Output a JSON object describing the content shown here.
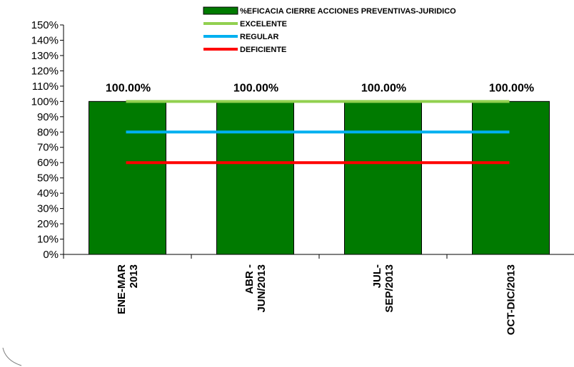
{
  "chart_data": {
    "type": "bar",
    "categories": [
      [
        "ENE-MAR",
        "2013"
      ],
      [
        "ABR -",
        "JUN/2013"
      ],
      [
        "JUL-",
        "SEP/2013"
      ],
      [
        "OCT-DIC/2013"
      ]
    ],
    "series": [
      {
        "name": "%EFICACIA CIERRE ACCIONES PREVENTIVAS-JURIDICO",
        "type": "bar",
        "color": "#007A00",
        "values": [
          100,
          100,
          100,
          100
        ],
        "data_labels": [
          "100.00%",
          "100.00%",
          "100.00%",
          "100.00%"
        ]
      },
      {
        "name": "EXCELENTE",
        "type": "line",
        "color": "#92D050",
        "values": [
          100,
          100,
          100,
          100
        ]
      },
      {
        "name": "REGULAR",
        "type": "line",
        "color": "#00B0F0",
        "values": [
          80,
          80,
          80,
          80
        ]
      },
      {
        "name": "DEFICIENTE",
        "type": "line",
        "color": "#FF0000",
        "values": [
          60,
          60,
          60,
          60
        ]
      }
    ],
    "y_ticks": [
      "0%",
      "10%",
      "20%",
      "30%",
      "40%",
      "50%",
      "60%",
      "70%",
      "80%",
      "90%",
      "100%",
      "110%",
      "120%",
      "130%",
      "140%",
      "150%"
    ],
    "ylim": [
      0,
      150
    ],
    "y_step": 10,
    "legend_position": "top",
    "grid": false
  }
}
